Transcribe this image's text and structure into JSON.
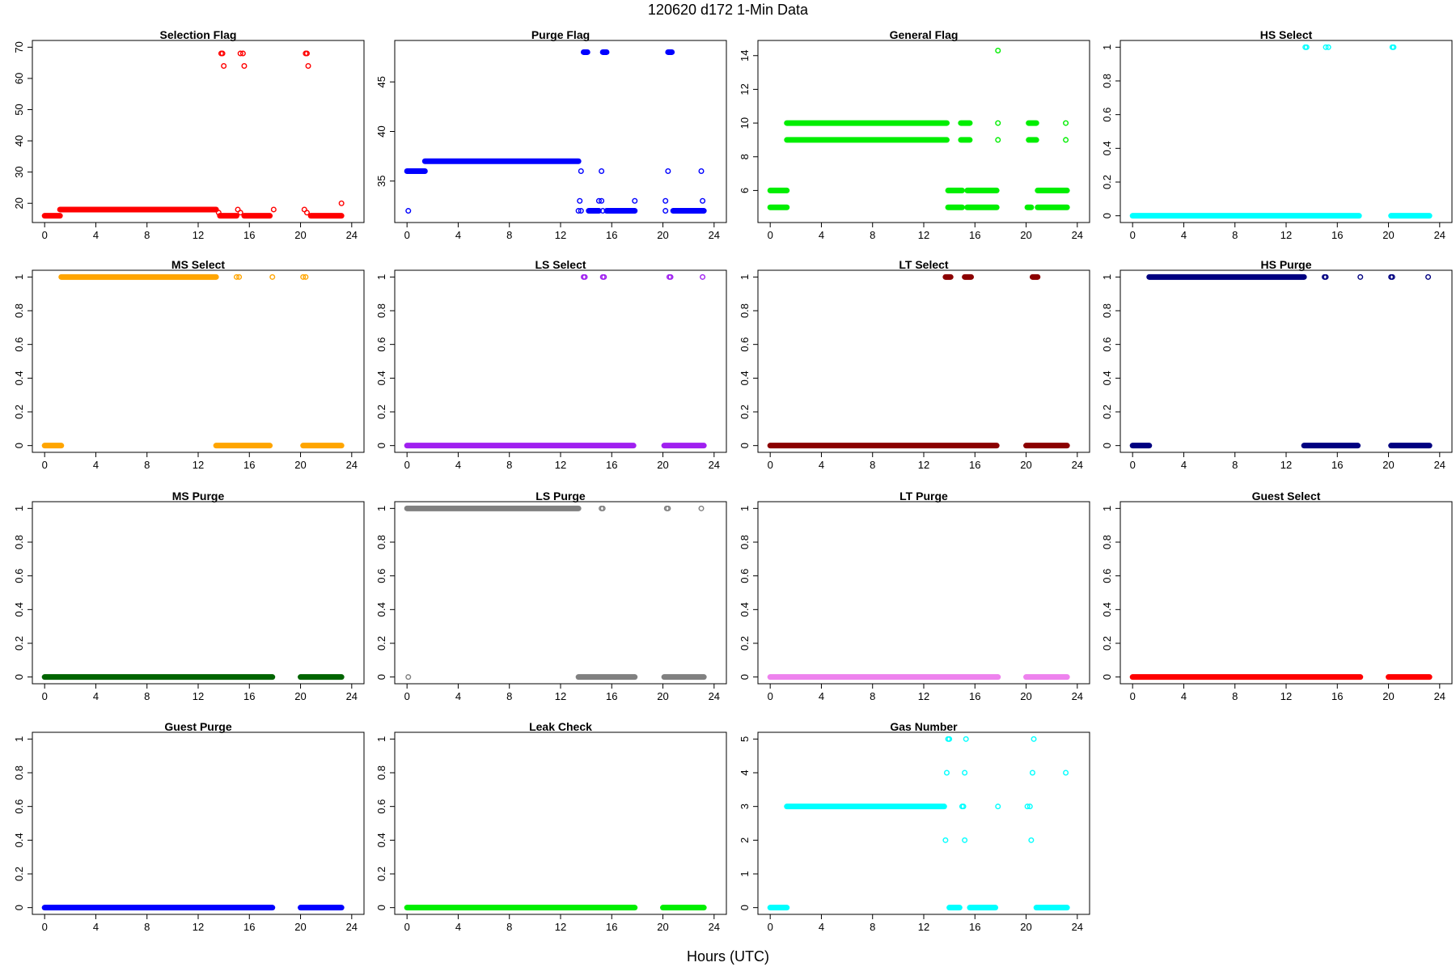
{
  "figure": {
    "title": "120620   d172   1-Min Data",
    "xlabel": "Hours (UTC)"
  },
  "chart_data": [
    {
      "type": "scatter",
      "title": "Selection Flag",
      "color": "#ff0000",
      "xlim": [
        0,
        24
      ],
      "ylim": [
        16,
        70
      ],
      "x_ticks": [
        0,
        4,
        8,
        12,
        16,
        20,
        24
      ],
      "y_ticks": [
        20,
        30,
        40,
        50,
        60,
        70
      ],
      "segments": [
        {
          "x": [
            0,
            1.2
          ],
          "y": 16
        },
        {
          "x": [
            1.2,
            13.4
          ],
          "y": 18
        },
        {
          "x": [
            13.7,
            15
          ],
          "y": 16
        },
        {
          "x": [
            15.6,
            17.6
          ],
          "y": 16
        },
        {
          "x": [
            20.8,
            23.2
          ],
          "y": 16
        }
      ],
      "points": [
        [
          13.8,
          68
        ],
        [
          13.9,
          68
        ],
        [
          14.0,
          64
        ],
        [
          15.3,
          68
        ],
        [
          15.5,
          68
        ],
        [
          15.6,
          64
        ],
        [
          20.4,
          68
        ],
        [
          20.5,
          68
        ],
        [
          20.6,
          64
        ],
        [
          13.6,
          17
        ],
        [
          15.1,
          18
        ],
        [
          15.3,
          17
        ],
        [
          17.9,
          18
        ],
        [
          20.3,
          18
        ],
        [
          20.5,
          17
        ],
        [
          23.2,
          20
        ]
      ]
    },
    {
      "type": "scatter",
      "title": "Purge Flag",
      "color": "#0000ff",
      "xlim": [
        0,
        24
      ],
      "ylim": [
        31.5,
        48.5
      ],
      "x_ticks": [
        0,
        4,
        8,
        12,
        16,
        20,
        24
      ],
      "y_ticks": [
        35,
        40,
        45
      ],
      "segments": [
        {
          "x": [
            0,
            1.4
          ],
          "y": 36
        },
        {
          "x": [
            1.4,
            13.4
          ],
          "y": 37
        },
        {
          "x": [
            14.2,
            15.0
          ],
          "y": 32
        },
        {
          "x": [
            15.6,
            17.8
          ],
          "y": 32
        },
        {
          "x": [
            20.8,
            23.2
          ],
          "y": 32
        },
        {
          "x": [
            13.8,
            14.1
          ],
          "y": 48
        },
        {
          "x": [
            15.3,
            15.6
          ],
          "y": 48
        },
        {
          "x": [
            20.4,
            20.7
          ],
          "y": 48
        }
      ],
      "points": [
        [
          0.1,
          32
        ],
        [
          13.6,
          36
        ],
        [
          13.5,
          33
        ],
        [
          13.4,
          32
        ],
        [
          13.6,
          32
        ],
        [
          15.0,
          33
        ],
        [
          15.2,
          33
        ],
        [
          15.2,
          36
        ],
        [
          15.3,
          32
        ],
        [
          17.8,
          33
        ],
        [
          20.2,
          33
        ],
        [
          20.4,
          36
        ],
        [
          20.2,
          32
        ],
        [
          23.0,
          36
        ],
        [
          23.1,
          33
        ]
      ]
    },
    {
      "type": "scatter",
      "title": "General Flag",
      "color": "#00ee00",
      "xlim": [
        0,
        24
      ],
      "ylim": [
        4.5,
        14.5
      ],
      "x_ticks": [
        0,
        4,
        8,
        12,
        16,
        20,
        24
      ],
      "y_ticks": [
        6,
        8,
        10,
        12,
        14
      ],
      "segments": [
        {
          "x": [
            0,
            1.3
          ],
          "y": 6
        },
        {
          "x": [
            0,
            1.3
          ],
          "y": 5
        },
        {
          "x": [
            1.3,
            13.8
          ],
          "y": 10
        },
        {
          "x": [
            1.3,
            13.8
          ],
          "y": 9
        },
        {
          "x": [
            13.9,
            15
          ],
          "y": 6
        },
        {
          "x": [
            13.9,
            15
          ],
          "y": 5
        },
        {
          "x": [
            15.4,
            17.7
          ],
          "y": 6
        },
        {
          "x": [
            15.4,
            17.7
          ],
          "y": 5
        },
        {
          "x": [
            20.9,
            23.2
          ],
          "y": 6
        },
        {
          "x": [
            20.9,
            23.2
          ],
          "y": 5
        },
        {
          "x": [
            14.9,
            15.6
          ],
          "y": 10
        },
        {
          "x": [
            14.9,
            15.6
          ],
          "y": 9
        },
        {
          "x": [
            20.2,
            20.8
          ],
          "y": 10
        },
        {
          "x": [
            20.2,
            20.8
          ],
          "y": 9
        },
        {
          "x": [
            20.1,
            20.4
          ],
          "y": 5
        }
      ],
      "points": [
        [
          17.8,
          14.3
        ],
        [
          17.8,
          10
        ],
        [
          17.8,
          9
        ],
        [
          23.1,
          10
        ],
        [
          23.1,
          9
        ]
      ]
    },
    {
      "type": "scatter",
      "title": "HS Select",
      "color": "#00ffff",
      "xlim": [
        0,
        24
      ],
      "ylim": [
        0,
        1
      ],
      "x_ticks": [
        0,
        4,
        8,
        12,
        16,
        20,
        24
      ],
      "y_ticks": [
        0,
        0.2,
        0.4,
        0.6,
        0.8,
        1
      ],
      "segments": [
        {
          "x": [
            0,
            17.7
          ],
          "y": 0
        },
        {
          "x": [
            20.2,
            23.2
          ],
          "y": 0
        }
      ],
      "points": [
        [
          13.5,
          1
        ],
        [
          13.6,
          1
        ],
        [
          15.1,
          1
        ],
        [
          15.3,
          1
        ],
        [
          20.3,
          1
        ],
        [
          20.4,
          1
        ]
      ]
    },
    {
      "type": "scatter",
      "title": "MS Select",
      "color": "#ffa500",
      "xlim": [
        0,
        24
      ],
      "ylim": [
        0,
        1
      ],
      "x_ticks": [
        0,
        4,
        8,
        12,
        16,
        20,
        24
      ],
      "y_ticks": [
        0,
        0.2,
        0.4,
        0.6,
        0.8,
        1
      ],
      "segments": [
        {
          "x": [
            0,
            1.3
          ],
          "y": 0
        },
        {
          "x": [
            1.3,
            13.4
          ],
          "y": 1
        },
        {
          "x": [
            13.4,
            17.6
          ],
          "y": 0
        },
        {
          "x": [
            20.2,
            23.2
          ],
          "y": 0
        }
      ],
      "points": [
        [
          15.0,
          1
        ],
        [
          15.2,
          1
        ],
        [
          17.8,
          1
        ],
        [
          20.2,
          1
        ],
        [
          20.4,
          1
        ]
      ]
    },
    {
      "type": "scatter",
      "title": "LS Select",
      "color": "#a020f0",
      "xlim": [
        0,
        24
      ],
      "ylim": [
        0,
        1
      ],
      "x_ticks": [
        0,
        4,
        8,
        12,
        16,
        20,
        24
      ],
      "y_ticks": [
        0,
        0.2,
        0.4,
        0.6,
        0.8,
        1
      ],
      "segments": [
        {
          "x": [
            0,
            17.7
          ],
          "y": 0
        },
        {
          "x": [
            20.1,
            23.2
          ],
          "y": 0
        }
      ],
      "points": [
        [
          13.8,
          1
        ],
        [
          13.9,
          1
        ],
        [
          15.3,
          1
        ],
        [
          15.4,
          1
        ],
        [
          20.5,
          1
        ],
        [
          20.6,
          1
        ],
        [
          23.1,
          1
        ]
      ]
    },
    {
      "type": "scatter",
      "title": "LT Select",
      "color": "#8b0000",
      "xlim": [
        0,
        24
      ],
      "ylim": [
        0,
        1
      ],
      "x_ticks": [
        0,
        4,
        8,
        12,
        16,
        20,
        24
      ],
      "y_ticks": [
        0,
        0.2,
        0.4,
        0.6,
        0.8,
        1
      ],
      "segments": [
        {
          "x": [
            0,
            17.7
          ],
          "y": 0
        },
        {
          "x": [
            20.0,
            23.2
          ],
          "y": 0
        },
        {
          "x": [
            13.7,
            14.1
          ],
          "y": 1
        },
        {
          "x": [
            15.2,
            15.7
          ],
          "y": 1
        },
        {
          "x": [
            20.5,
            20.9
          ],
          "y": 1
        }
      ],
      "points": []
    },
    {
      "type": "scatter",
      "title": "HS Purge",
      "color": "#000080",
      "xlim": [
        0,
        24
      ],
      "ylim": [
        0,
        1
      ],
      "x_ticks": [
        0,
        4,
        8,
        12,
        16,
        20,
        24
      ],
      "y_ticks": [
        0,
        0.2,
        0.4,
        0.6,
        0.8,
        1
      ],
      "segments": [
        {
          "x": [
            0,
            1.3
          ],
          "y": 0
        },
        {
          "x": [
            1.3,
            13.4
          ],
          "y": 1
        },
        {
          "x": [
            13.4,
            17.6
          ],
          "y": 0
        },
        {
          "x": [
            20.2,
            23.2
          ],
          "y": 0
        }
      ],
      "points": [
        [
          15.0,
          1
        ],
        [
          15.1,
          1
        ],
        [
          17.8,
          1
        ],
        [
          20.2,
          1
        ],
        [
          20.3,
          1
        ],
        [
          23.1,
          1
        ]
      ]
    },
    {
      "type": "scatter",
      "title": "MS Purge",
      "color": "#006400",
      "xlim": [
        0,
        24
      ],
      "ylim": [
        0,
        1
      ],
      "x_ticks": [
        0,
        4,
        8,
        12,
        16,
        20,
        24
      ],
      "y_ticks": [
        0,
        0.2,
        0.4,
        0.6,
        0.8,
        1
      ],
      "segments": [
        {
          "x": [
            0,
            17.8
          ],
          "y": 0
        },
        {
          "x": [
            20.0,
            23.2
          ],
          "y": 0
        }
      ],
      "points": []
    },
    {
      "type": "scatter",
      "title": "LS Purge",
      "color": "#808080",
      "xlim": [
        0,
        24
      ],
      "ylim": [
        0,
        1
      ],
      "x_ticks": [
        0,
        4,
        8,
        12,
        16,
        20,
        24
      ],
      "y_ticks": [
        0,
        0.2,
        0.4,
        0.6,
        0.8,
        1
      ],
      "segments": [
        {
          "x": [
            0,
            13.4
          ],
          "y": 1
        },
        {
          "x": [
            13.4,
            17.8
          ],
          "y": 0
        },
        {
          "x": [
            20.1,
            23.2
          ],
          "y": 0
        }
      ],
      "points": [
        [
          0.1,
          0
        ],
        [
          15.2,
          1
        ],
        [
          15.3,
          1
        ],
        [
          20.3,
          1
        ],
        [
          20.4,
          1
        ],
        [
          23.0,
          1
        ]
      ]
    },
    {
      "type": "scatter",
      "title": "LT Purge",
      "color": "#ee82ee",
      "xlim": [
        0,
        24
      ],
      "ylim": [
        0,
        1
      ],
      "x_ticks": [
        0,
        4,
        8,
        12,
        16,
        20,
        24
      ],
      "y_ticks": [
        0,
        0.2,
        0.4,
        0.6,
        0.8,
        1
      ],
      "segments": [
        {
          "x": [
            0,
            17.8
          ],
          "y": 0
        },
        {
          "x": [
            20.0,
            23.2
          ],
          "y": 0
        }
      ],
      "points": []
    },
    {
      "type": "scatter",
      "title": "Guest Select",
      "color": "#ff0000",
      "xlim": [
        0,
        24
      ],
      "ylim": [
        0,
        1
      ],
      "x_ticks": [
        0,
        4,
        8,
        12,
        16,
        20,
        24
      ],
      "y_ticks": [
        0,
        0.2,
        0.4,
        0.6,
        0.8,
        1
      ],
      "segments": [
        {
          "x": [
            0,
            17.8
          ],
          "y": 0
        },
        {
          "x": [
            20.0,
            23.2
          ],
          "y": 0
        }
      ],
      "points": []
    },
    {
      "type": "scatter",
      "title": "Guest Purge",
      "color": "#0000ff",
      "xlim": [
        0,
        24
      ],
      "ylim": [
        0,
        1
      ],
      "x_ticks": [
        0,
        4,
        8,
        12,
        16,
        20,
        24
      ],
      "y_ticks": [
        0,
        0.2,
        0.4,
        0.6,
        0.8,
        1
      ],
      "segments": [
        {
          "x": [
            0,
            17.8
          ],
          "y": 0
        },
        {
          "x": [
            20.0,
            23.2
          ],
          "y": 0
        }
      ],
      "points": []
    },
    {
      "type": "scatter",
      "title": "Leak Check",
      "color": "#00ee00",
      "xlim": [
        0,
        24
      ],
      "ylim": [
        0,
        1
      ],
      "x_ticks": [
        0,
        4,
        8,
        12,
        16,
        20,
        24
      ],
      "y_ticks": [
        0,
        0.2,
        0.4,
        0.6,
        0.8,
        1
      ],
      "segments": [
        {
          "x": [
            0,
            17.8
          ],
          "y": 0
        },
        {
          "x": [
            20.0,
            23.2
          ],
          "y": 0
        }
      ],
      "points": []
    },
    {
      "type": "scatter",
      "title": "Gas Number",
      "color": "#00ffff",
      "xlim": [
        0,
        24
      ],
      "ylim": [
        0,
        5
      ],
      "x_ticks": [
        0,
        4,
        8,
        12,
        16,
        20,
        24
      ],
      "y_ticks": [
        0,
        1,
        2,
        3,
        4,
        5
      ],
      "segments": [
        {
          "x": [
            0,
            1.3
          ],
          "y": 0
        },
        {
          "x": [
            1.3,
            13.6
          ],
          "y": 3
        },
        {
          "x": [
            14.0,
            14.8
          ],
          "y": 0
        },
        {
          "x": [
            15.6,
            17.6
          ],
          "y": 0
        },
        {
          "x": [
            20.8,
            23.2
          ],
          "y": 0
        }
      ],
      "points": [
        [
          13.8,
          4
        ],
        [
          13.9,
          5
        ],
        [
          14.0,
          5
        ],
        [
          13.7,
          2
        ],
        [
          15.0,
          3
        ],
        [
          15.1,
          3
        ],
        [
          15.2,
          4
        ],
        [
          15.3,
          5
        ],
        [
          15.2,
          2
        ],
        [
          17.8,
          3
        ],
        [
          20.1,
          3
        ],
        [
          20.3,
          3
        ],
        [
          20.4,
          2
        ],
        [
          20.5,
          4
        ],
        [
          20.6,
          5
        ],
        [
          23.1,
          4
        ]
      ]
    }
  ]
}
